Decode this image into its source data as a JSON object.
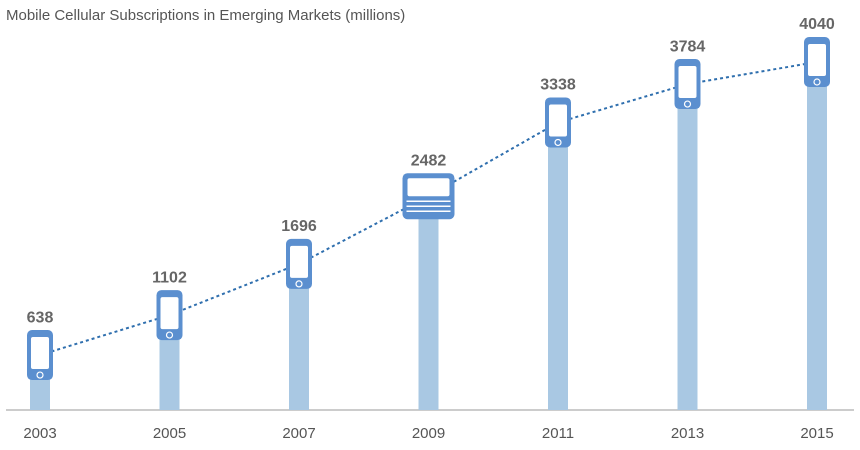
{
  "chart_data": {
    "type": "bar",
    "title": "Mobile Cellular Subscriptions in Emerging Markets (millions)",
    "categories": [
      "2003",
      "2005",
      "2007",
      "2009",
      "2011",
      "2013",
      "2015"
    ],
    "values": [
      638,
      1102,
      1696,
      2482,
      3338,
      3784,
      4040
    ],
    "color": "#a9c8e3",
    "icon_color": "#5b8fcf",
    "line_color": "#2f6fae"
  }
}
